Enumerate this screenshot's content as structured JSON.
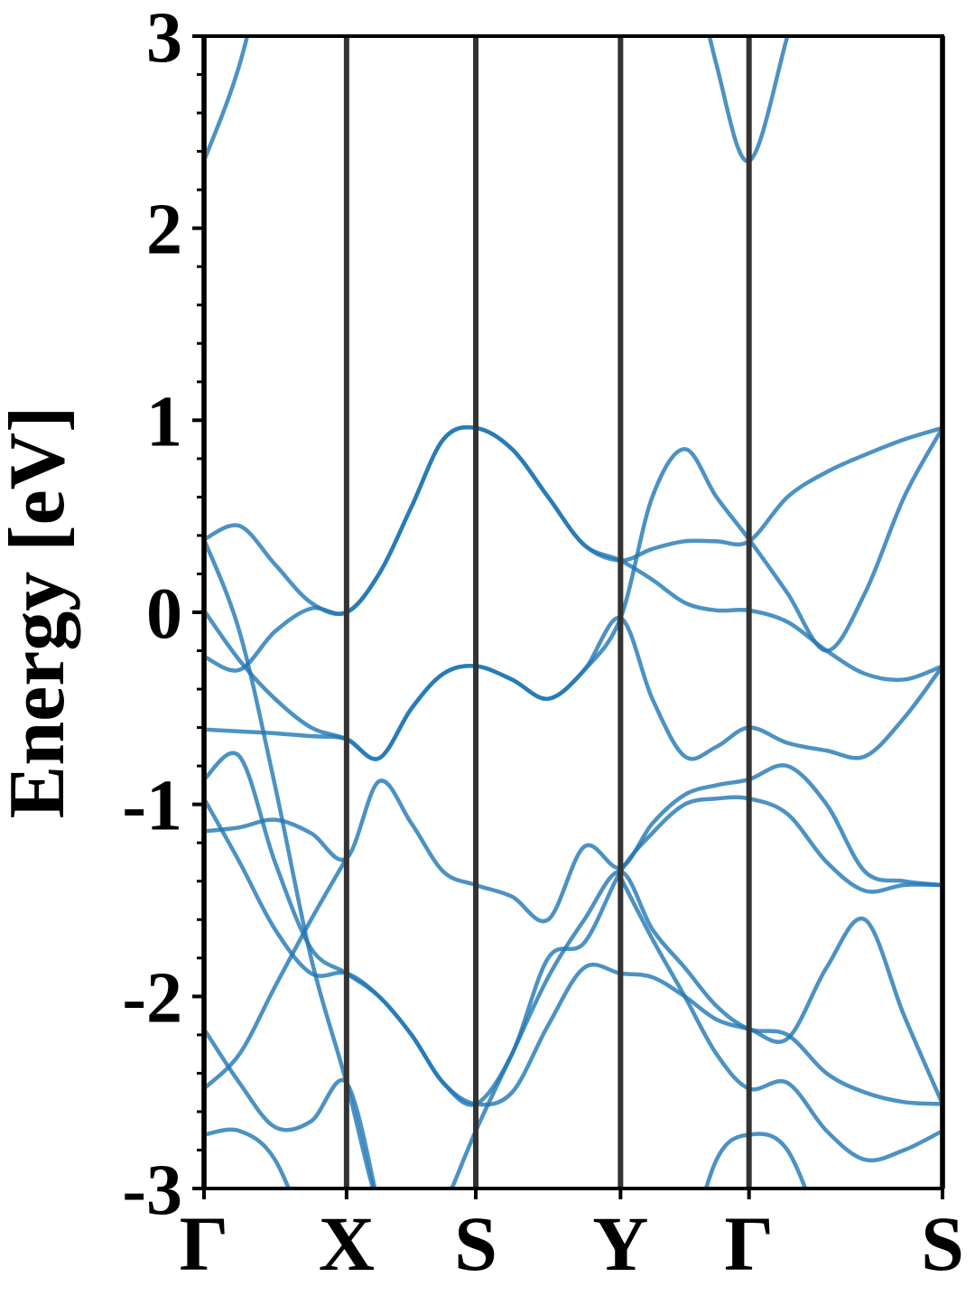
{
  "chart_data": {
    "type": "line",
    "ylabel": "Energy [eV]",
    "x": [
      0,
      0.048,
      0.096,
      0.145,
      0.193,
      0.237,
      0.281,
      0.324,
      0.368,
      0.417,
      0.466,
      0.515,
      0.564,
      0.607,
      0.651,
      0.694,
      0.738,
      0.79,
      0.843,
      0.895,
      0.948,
      1.0
    ],
    "xlim": [
      0,
      1
    ],
    "xticks": [
      {
        "value": 0,
        "label": "Γ"
      },
      {
        "value": 0.193,
        "label": "X"
      },
      {
        "value": 0.368,
        "label": "S"
      },
      {
        "value": 0.564,
        "label": "Y"
      },
      {
        "value": 0.738,
        "label": "Γ"
      },
      {
        "value": 1.0,
        "label": "S"
      }
    ],
    "xgrid": true,
    "ylim": [
      -3,
      3
    ],
    "yticks": [
      -3,
      -2,
      -1,
      0,
      1,
      2,
      3
    ],
    "yminorticks": [
      -2.8,
      -2.6,
      -2.4,
      -2.2,
      -1.8,
      -1.6,
      -1.4,
      -1.2,
      -0.8,
      -0.6,
      -0.4,
      -0.2,
      0.2,
      0.4,
      0.6,
      0.8,
      1.2,
      1.4,
      1.6,
      1.8,
      2.2,
      2.4,
      2.6,
      2.8
    ],
    "series": [
      {
        "color": "#1f77b4",
        "values": [
          2.35,
          2.85,
          3.6,
          null,
          null,
          null,
          null,
          null,
          null,
          null,
          null,
          null,
          null,
          null,
          3.6,
          2.85,
          2.35,
          3.0,
          3.8,
          null,
          null,
          null
        ]
      },
      {
        "color": "#1f77b4",
        "values": [
          0.38,
          0.45,
          0.25,
          0.05,
          0.0,
          0.2,
          0.55,
          0.9,
          0.96,
          0.85,
          0.6,
          0.35,
          0.27,
          0.33,
          0.37,
          0.37,
          0.37,
          0.6,
          0.73,
          0.82,
          0.9,
          0.96
        ]
      },
      {
        "color": "#1f77b4",
        "values": [
          0.01,
          -0.25,
          -0.45,
          -0.6,
          -0.66,
          -0.76,
          -0.5,
          -0.32,
          -0.28,
          -0.35,
          -0.45,
          -0.3,
          -0.03,
          -0.45,
          -0.75,
          -0.7,
          -0.6,
          -0.68,
          -0.72,
          -0.75,
          -0.55,
          -0.28
        ]
      },
      {
        "color": "#1f77b4",
        "values": [
          -0.23,
          -0.3,
          -0.1,
          0.02,
          0.0,
          0.2,
          0.55,
          0.9,
          0.96,
          0.85,
          0.6,
          0.35,
          0.27,
          0.17,
          0.05,
          0.01,
          0.01,
          -0.05,
          -0.2,
          -0.32,
          -0.35,
          -0.28
        ]
      },
      {
        "color": "#1f77b4",
        "values": [
          -0.61,
          -0.62,
          -0.63,
          -0.645,
          -0.66,
          -0.76,
          -0.5,
          -0.32,
          -0.28,
          -0.35,
          -0.45,
          -0.3,
          -0.03,
          0.6,
          0.85,
          0.6,
          0.38,
          0.1,
          -0.2,
          0.1,
          0.6,
          0.96
        ]
      },
      {
        "color": "#1f77b4",
        "values": [
          0.38,
          -0.1,
          -0.9,
          -1.8,
          -2.45,
          -3.1,
          -3.4,
          -3.1,
          -2.7,
          -2.3,
          -1.9,
          -1.6,
          -1.35,
          -1.65,
          -1.85,
          -2.05,
          -2.17,
          -2.2,
          -2.4,
          -2.5,
          -2.55,
          -2.56
        ]
      },
      {
        "color": "#1f77b4",
        "values": [
          -0.87,
          -0.75,
          -1.3,
          -1.75,
          -1.88,
          -2.0,
          -2.2,
          -2.45,
          -2.56,
          -2.3,
          -1.8,
          -1.72,
          -1.35,
          -1.15,
          -1.0,
          -0.97,
          -0.97,
          -1.05,
          -1.3,
          -1.45,
          -1.42,
          -1.42
        ]
      },
      {
        "color": "#1f77b4",
        "values": [
          -0.97,
          -1.3,
          -1.65,
          -1.88,
          -1.88,
          -2.0,
          -2.2,
          -2.45,
          -2.56,
          -2.5,
          -2.15,
          -1.85,
          -1.88,
          -1.9,
          -2.0,
          -2.12,
          -2.17,
          -2.22,
          -1.85,
          -1.6,
          -2.1,
          -2.56
        ]
      },
      {
        "color": "#1f77b4",
        "values": [
          -1.14,
          -1.12,
          -1.08,
          -1.15,
          -1.28,
          -0.88,
          -1.1,
          -1.35,
          -1.42,
          -1.48,
          -1.6,
          -1.22,
          -1.33,
          -1.1,
          -0.95,
          -0.9,
          -0.87,
          -0.8,
          -1.0,
          -1.35,
          -1.4,
          -1.42
        ]
      },
      {
        "color": "#1f77b4",
        "values": [
          -2.17,
          -2.45,
          -2.68,
          -2.65,
          -2.45,
          -3.1,
          null,
          null,
          null,
          null,
          null,
          null,
          null,
          null,
          -3.4,
          -2.85,
          -2.72,
          -2.8,
          -3.3,
          null,
          null,
          null
        ]
      },
      {
        "color": "#1f77b4",
        "values": [
          -2.48,
          -2.3,
          -1.95,
          -1.6,
          -1.28,
          null,
          null,
          null,
          null,
          null,
          null,
          null,
          -1.38,
          -1.7,
          -2.0,
          -2.3,
          -2.48,
          -2.45,
          -2.7,
          -2.85,
          -2.8,
          -2.7
        ]
      },
      {
        "color": "#1f77b4",
        "values": [
          -2.72,
          -2.7,
          -2.85,
          -3.3,
          null,
          null,
          null,
          null,
          null,
          null,
          null,
          null,
          null,
          null,
          null,
          null,
          null,
          null,
          null,
          null,
          null,
          null
        ]
      }
    ]
  }
}
